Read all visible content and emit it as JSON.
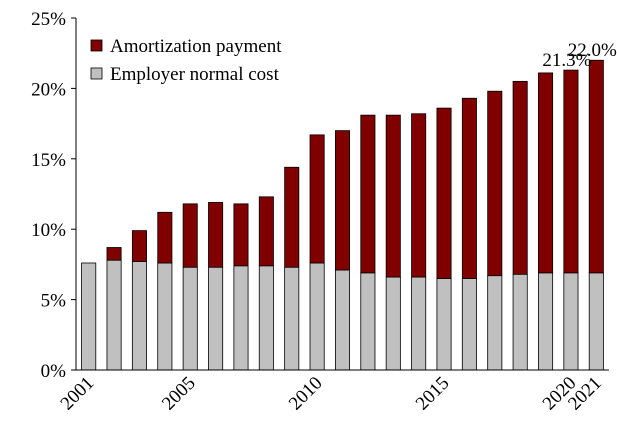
{
  "chart_data": {
    "type": "stacked_bar",
    "categories": [
      "2001",
      null,
      null,
      null,
      "2005",
      null,
      null,
      null,
      null,
      "2010",
      null,
      null,
      null,
      null,
      "2015",
      null,
      null,
      null,
      null,
      "2020",
      "2021"
    ],
    "series": [
      {
        "name": "Employer normal cost",
        "color": "#c0c0c0",
        "values": [
          7.6,
          7.8,
          7.7,
          7.6,
          7.3,
          7.3,
          7.4,
          7.4,
          7.3,
          7.6,
          7.1,
          6.9,
          6.6,
          6.6,
          6.5,
          6.5,
          6.7,
          6.8,
          6.9,
          6.9,
          6.9
        ]
      },
      {
        "name": "Amortization payment",
        "color": "#800000",
        "values": [
          0,
          0.9,
          2.2,
          3.6,
          4.5,
          4.6,
          4.4,
          4.9,
          7.1,
          9.1,
          9.9,
          11.2,
          11.5,
          11.6,
          12.1,
          12.8,
          13.1,
          13.7,
          14.2,
          14.4,
          15.1
        ]
      }
    ],
    "annotations": [
      {
        "text": "21.3%",
        "category": "2020"
      },
      {
        "text": "22.0%",
        "category": "2021"
      }
    ],
    "ylim": [
      0,
      25
    ],
    "yticks": [
      {
        "value": 0,
        "label": "0%"
      },
      {
        "value": 5,
        "label": "5%"
      },
      {
        "value": 10,
        "label": "10%"
      },
      {
        "value": 15,
        "label": "15%"
      },
      {
        "value": 20,
        "label": "20%"
      },
      {
        "value": 25,
        "label": "25%"
      }
    ],
    "legend": "upper left"
  }
}
